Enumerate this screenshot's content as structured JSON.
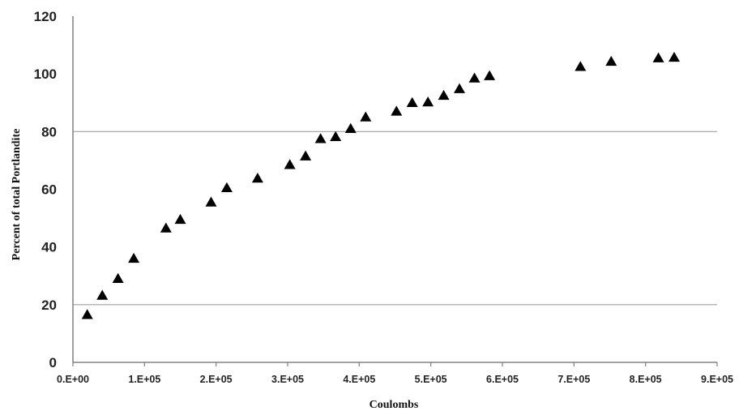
{
  "chart_data": {
    "type": "scatter",
    "title": "",
    "xlabel": "Coulombs",
    "ylabel": "Percent of total Portlandite",
    "xlim": [
      0,
      900000
    ],
    "ylim": [
      0,
      120
    ],
    "x_ticks": [
      0,
      100000,
      200000,
      300000,
      400000,
      500000,
      600000,
      700000,
      800000,
      900000
    ],
    "x_tick_labels": [
      "0.E+00",
      "1.E+05",
      "2.E+05",
      "3.E+05",
      "4.E+05",
      "5.E+05",
      "6.E+05",
      "7.E+05",
      "8.E+05",
      "9.E+05"
    ],
    "y_ticks": [
      0,
      20,
      40,
      60,
      80,
      100,
      120
    ],
    "y_tick_labels": [
      "0",
      "20",
      "40",
      "60",
      "80",
      "100",
      "120"
    ],
    "gridlines_y": [
      20,
      80
    ],
    "marker": "triangle",
    "marker_color": "#000000",
    "grid_color": "#a0a0a0",
    "series": [
      {
        "points": [
          [
            20000,
            16.5
          ],
          [
            41000,
            23.2
          ],
          [
            63000,
            29
          ],
          [
            85000,
            36
          ],
          [
            130000,
            46.5
          ],
          [
            150000,
            49.5
          ],
          [
            193000,
            55.5
          ],
          [
            215000,
            60.5
          ],
          [
            258000,
            63.8
          ],
          [
            303000,
            68.5
          ],
          [
            325000,
            71.5
          ],
          [
            346000,
            77.5
          ],
          [
            367000,
            78.2
          ],
          [
            388000,
            81
          ],
          [
            409000,
            85
          ],
          [
            452000,
            87
          ],
          [
            474000,
            90
          ],
          [
            496000,
            90.2
          ],
          [
            518000,
            92.5
          ],
          [
            540000,
            94.8
          ],
          [
            561000,
            98.5
          ],
          [
            582000,
            99.3
          ],
          [
            709000,
            102.5
          ],
          [
            752000,
            104.3
          ],
          [
            818000,
            105.5
          ],
          [
            840000,
            105.7
          ]
        ]
      }
    ]
  }
}
